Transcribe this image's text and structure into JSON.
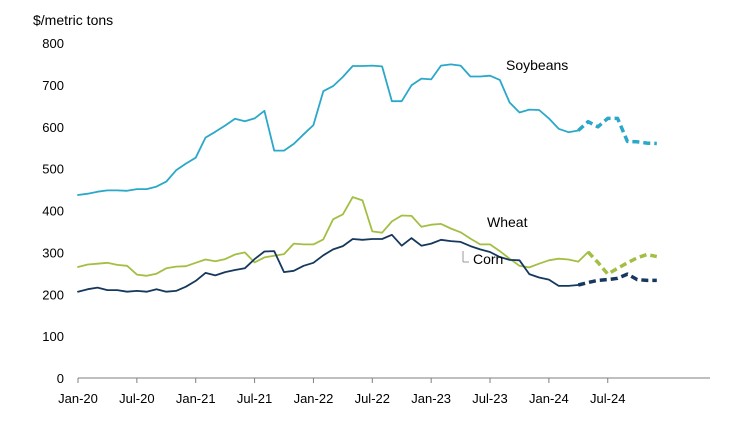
{
  "chart_data": {
    "type": "line",
    "ylabel": "$/metric tons",
    "ylim": [
      0,
      800
    ],
    "yticks": [
      "0",
      "100",
      "200",
      "300",
      "400",
      "500",
      "600",
      "700",
      "800"
    ],
    "xtick_labels": [
      "Jan-20",
      "Jul-20",
      "Jan-21",
      "Jul-21",
      "Jan-22",
      "Jul-22",
      "Jan-23",
      "Jul-23",
      "Jan-24",
      "Jul-24"
    ],
    "x_start": "Jan-20",
    "grid": false,
    "legend": "none",
    "series": [
      {
        "name": "Soybeans",
        "color": "#2ba8c9",
        "values": [
          437,
          440,
          445,
          448,
          448,
          447,
          451,
          451,
          457,
          469,
          496,
          512,
          526,
          574,
          588,
          603,
          619,
          613,
          620,
          638,
          543,
          543,
          559,
          582,
          604,
          685,
          697,
          719,
          745,
          745,
          746,
          744,
          661,
          661,
          699,
          715,
          713,
          746,
          749,
          746,
          720,
          720,
          722,
          712,
          658,
          634,
          641,
          640,
          620,
          595,
          587,
          591
        ],
        "forecast": [
          591,
          612,
          600,
          620,
          620,
          565,
          564,
          561,
          560
        ]
      },
      {
        "name": "Wheat",
        "color": "#a3bf43",
        "values": [
          265,
          271,
          273,
          275,
          270,
          268,
          247,
          244,
          249,
          262,
          266,
          267,
          275,
          283,
          279,
          284,
          295,
          300,
          276,
          288,
          292,
          296,
          321,
          319,
          319,
          331,
          379,
          391,
          432,
          424,
          350,
          347,
          374,
          388,
          387,
          361,
          366,
          368,
          357,
          348,
          333,
          319,
          319,
          303,
          285,
          268,
          264,
          273,
          281,
          285,
          283,
          278,
          301
        ],
        "forecast": [
          301,
          276,
          248,
          262,
          275,
          287,
          295,
          290
        ]
      },
      {
        "name": "Corn",
        "color": "#15385c",
        "values": [
          206,
          212,
          216,
          210,
          210,
          206,
          208,
          206,
          212,
          206,
          208,
          218,
          232,
          251,
          245,
          253,
          258,
          262,
          284,
          302,
          303,
          253,
          256,
          268,
          275,
          293,
          307,
          315,
          332,
          330,
          332,
          332,
          342,
          316,
          334,
          316,
          321,
          330,
          327,
          325,
          315,
          307,
          301,
          289,
          282,
          281,
          248,
          240,
          235,
          220,
          220,
          222
        ],
        "forecast": [
          222,
          228,
          233,
          235,
          238,
          248,
          235,
          233,
          233
        ]
      }
    ],
    "annotations": [
      "Soybeans",
      "Wheat",
      "Corn"
    ]
  }
}
